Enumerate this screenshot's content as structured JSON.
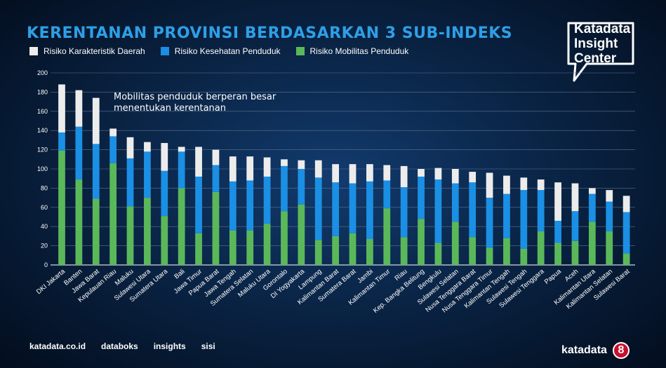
{
  "title": "KERENTANAN PROVINSI BERDASARKAN 3 SUB-INDEKS",
  "brand": {
    "logo_lines": [
      "Katadata",
      "Insight",
      "Center"
    ],
    "footer_left": [
      "katadata.co.id",
      "databoks",
      "insights",
      "sisi"
    ],
    "footer_right": "katadata",
    "badge": "8"
  },
  "colors": {
    "accent": "#2e9fe6",
    "daerah": "#ececec",
    "kesehatan": "#1b8fe3",
    "mobilitas": "#5bb85a",
    "badge": "#c8102e"
  },
  "chart_data": {
    "type": "bar",
    "stacked": true,
    "title": "KERENTANAN PROVINSI BERDASARKAN 3 SUB-INDEKS",
    "annotation": "Mobilitas penduduk berperan besar menentukan kerentanan",
    "ylim": [
      0,
      200
    ],
    "yticks": [
      0,
      20,
      40,
      60,
      80,
      100,
      120,
      140,
      160,
      180,
      200
    ],
    "grid": true,
    "legend_position": "top-left",
    "categories": [
      "DKI Jakarta",
      "Banten",
      "Jawa Barat",
      "Kepulauan Riau",
      "Maluku",
      "Sulawesi Utara",
      "Sumatera Utara",
      "Bali",
      "Jawa Timur",
      "Papua Barat",
      "Jawa Tengah",
      "Sumatera Selatan",
      "Maluku Utara",
      "Gorontalo",
      "DI Yogyakarta",
      "Lampung",
      "Kalimantan Barat",
      "Sumatera Barat",
      "Jambi",
      "Kalimantan Timur",
      "Riau",
      "Kep. Bangka Belitung",
      "Bengkulu",
      "Sulawesi Selatan",
      "Nusa Tenggara Barat",
      "Nusa Tenggara Timur",
      "Kalimantan Tengah",
      "Sulawesi Tengah",
      "Sulawesi Tenggara",
      "Papua",
      "Aceh",
      "Kalimantan Utara",
      "Kalimantan Selatan",
      "Sulawesi Barat"
    ],
    "series": [
      {
        "name": "Risiko Mobilitas Penduduk",
        "color_key": "mobilitas",
        "values": [
          119,
          89,
          69,
          106,
          61,
          70,
          51,
          80,
          33,
          76,
          36,
          36,
          43,
          56,
          63,
          26,
          30,
          33,
          27,
          59,
          29,
          48,
          23,
          45,
          29,
          18,
          28,
          17,
          35,
          23,
          25,
          45,
          35,
          12
        ]
      },
      {
        "name": "Risiko Kesehatan Penduduk",
        "color_key": "kesehatan",
        "values": [
          19,
          55,
          57,
          28,
          50,
          48,
          47,
          38,
          59,
          28,
          51,
          52,
          49,
          47,
          37,
          65,
          56,
          52,
          60,
          29,
          52,
          44,
          66,
          40,
          57,
          52,
          46,
          61,
          43,
          23,
          31,
          29,
          31,
          43
        ]
      },
      {
        "name": "Risiko Karakteristik Daerah",
        "color_key": "daerah",
        "values": [
          50,
          38,
          48,
          8,
          22,
          10,
          29,
          5,
          31,
          16,
          26,
          25,
          20,
          7,
          9,
          18,
          19,
          20,
          18,
          16,
          22,
          8,
          12,
          15,
          11,
          26,
          19,
          13,
          11,
          40,
          29,
          6,
          12,
          17
        ]
      }
    ],
    "legend": [
      "Risiko Karakteristik Daerah",
      "Risiko Kesehatan Penduduk",
      "Risiko Mobilitas Penduduk"
    ]
  }
}
